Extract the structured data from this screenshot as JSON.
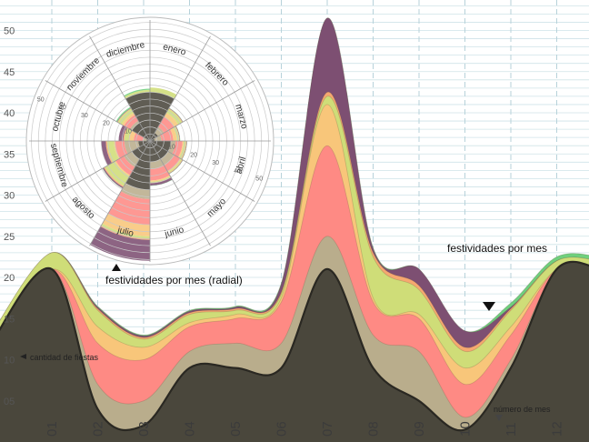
{
  "chart_data": [
    {
      "type": "area",
      "stacking": "stacked-streamgraph",
      "x": [
        1,
        2,
        3,
        4,
        5,
        6,
        7,
        8,
        9,
        10,
        11,
        12
      ],
      "xtick_labels": [
        "01",
        "02",
        "03",
        "04",
        "05",
        "06",
        "07",
        "08",
        "09",
        "10",
        "11",
        "12"
      ],
      "ylim": [
        0,
        52
      ],
      "yticks": [
        5,
        10,
        15,
        20,
        25,
        30,
        35,
        40,
        45,
        50
      ],
      "ytick_labels": [
        "05",
        "10",
        "15",
        "20",
        "25",
        "30",
        "35",
        "40",
        "45",
        "50"
      ],
      "grid": true,
      "series": [
        {
          "color": "#4a473c",
          "values": [
            21,
            4,
            2,
            9,
            9,
            9,
            21,
            9,
            5,
            1.5,
            9,
            21
          ]
        },
        {
          "color": "#b9ad8c",
          "values": [
            0,
            3,
            3,
            2,
            3,
            3,
            4,
            4,
            6,
            1.5,
            1,
            0
          ]
        },
        {
          "color": "#fe8a84",
          "values": [
            0,
            5,
            5,
            3,
            3,
            5,
            11,
            4,
            4,
            4,
            3,
            0
          ]
        },
        {
          "color": "#f8c67a",
          "values": [
            0,
            2,
            1.5,
            0.5,
            0.5,
            0.5,
            5,
            0.5,
            0.5,
            2,
            1,
            0
          ]
        },
        {
          "color": "#cfdd78",
          "values": [
            2,
            2,
            1,
            1,
            0.5,
            0.5,
            1,
            5,
            3,
            2,
            2,
            1
          ]
        },
        {
          "color": "#f6a870",
          "values": [
            0,
            0.2,
            0.2,
            0.2,
            0.2,
            0.2,
            0.5,
            0.5,
            0.5,
            0.5,
            0.2,
            0
          ]
        },
        {
          "color": "#7d4f72",
          "values": [
            0,
            0.2,
            0.2,
            0.2,
            0.2,
            1,
            9,
            0.5,
            2,
            2,
            0.2,
            0
          ]
        },
        {
          "color": "#6fcf7d",
          "values": [
            0,
            0.1,
            0.1,
            0.1,
            0.1,
            0.1,
            0,
            0.1,
            0,
            0,
            0.5,
            0.5
          ]
        }
      ]
    },
    {
      "type": "pie",
      "variant": "radial-stacked",
      "categories": [
        "enero",
        "febrero",
        "marzo",
        "abril",
        "mayo",
        "junio",
        "julio",
        "agosto",
        "septiembre",
        "octubre",
        "noviembre",
        "diciembre"
      ],
      "ring_ticks": [
        10,
        20,
        30,
        40,
        50
      ],
      "ring_tick_labels": [
        "10",
        "20",
        "30",
        "40",
        "50"
      ],
      "rmax": 52,
      "series": [
        {
          "color": "#4a473c",
          "values": [
            21,
            4,
            2,
            9,
            9,
            9,
            21,
            9,
            5,
            1.5,
            9,
            21
          ]
        },
        {
          "color": "#b9ad8c",
          "values": [
            0,
            3,
            3,
            2,
            3,
            3,
            4,
            4,
            6,
            1.5,
            1,
            0
          ]
        },
        {
          "color": "#fe8a84",
          "values": [
            0,
            5,
            5,
            3,
            3,
            5,
            11,
            4,
            4,
            4,
            3,
            0
          ]
        },
        {
          "color": "#f8c67a",
          "values": [
            0,
            2,
            1.5,
            0.5,
            0.5,
            0.5,
            5,
            0.5,
            0.5,
            2,
            1,
            0
          ]
        },
        {
          "color": "#cfdd78",
          "values": [
            2,
            2,
            1,
            1,
            0.5,
            0.5,
            1,
            5,
            3,
            2,
            2,
            1
          ]
        },
        {
          "color": "#f6a870",
          "values": [
            0,
            0.2,
            0.2,
            0.2,
            0.2,
            0.2,
            0.5,
            0.5,
            0.5,
            0.5,
            0.2,
            0
          ]
        },
        {
          "color": "#7d4f72",
          "values": [
            0,
            0.2,
            0.2,
            0.2,
            0.2,
            1,
            9,
            0.5,
            2,
            2,
            0.2,
            0
          ]
        },
        {
          "color": "#6fcf7d",
          "values": [
            0,
            0.1,
            0.1,
            0.1,
            0.1,
            0.1,
            0,
            0.1,
            0,
            0,
            0.5,
            0.5
          ]
        }
      ]
    }
  ],
  "annotations": {
    "stream_label": "festividades por mes",
    "radial_label": "festividades por mes (radial)",
    "y_axis_note": "cantidad de fiestas",
    "x_axis_note": "número de mes"
  }
}
